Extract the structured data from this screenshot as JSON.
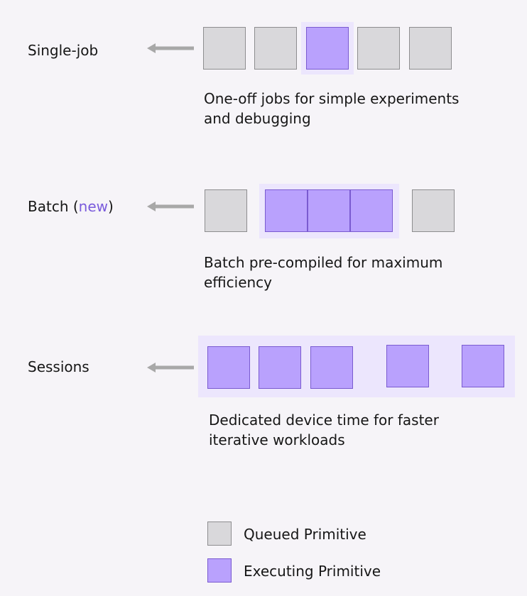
{
  "modes": [
    {
      "label": "Single-job",
      "description": [
        "One-off jobs for simple experiments",
        "and debugging"
      ]
    },
    {
      "label": "Batch",
      "label_suffix_open": " (",
      "label_highlight": "new",
      "label_suffix_close": ")",
      "description": [
        "Batch pre-compiled for maximum",
        "efficiency"
      ]
    },
    {
      "label": "Sessions",
      "description": [
        "Dedicated device time for faster",
        "iterative workloads"
      ]
    }
  ],
  "legend": [
    {
      "label": "Queued Primitive",
      "color": "#d9d8db"
    },
    {
      "label": "Executing Primitive",
      "color": "#b9a1fd"
    }
  ],
  "colors": {
    "queued": "#d9d8db",
    "executing": "#b9a1fd",
    "highlight": "#ece6fd",
    "arrow": "#a8a8a8",
    "accent": "#7a5bdc"
  },
  "icons": {
    "arrow": "arrow-left-icon"
  }
}
